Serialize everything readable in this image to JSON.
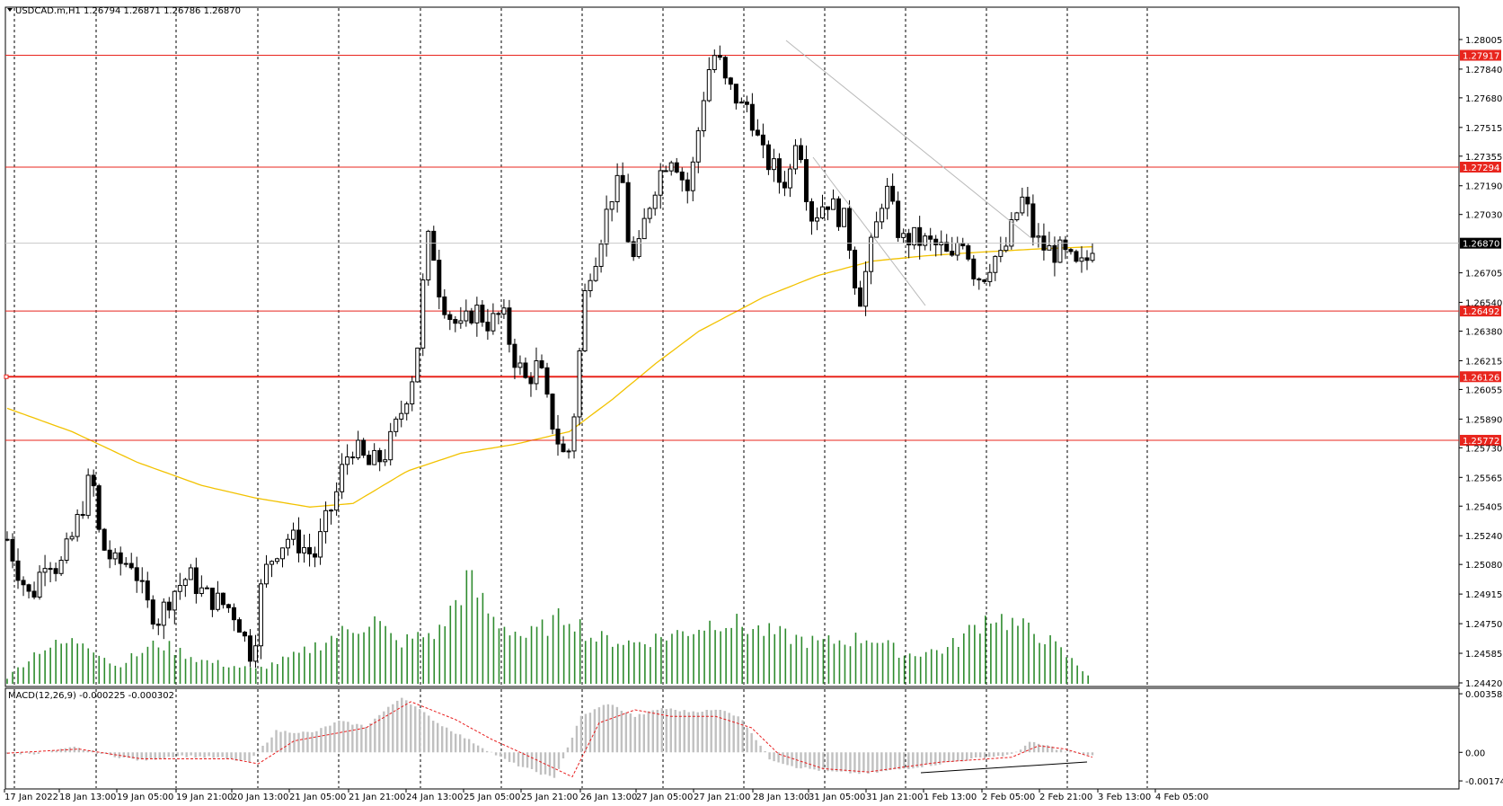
{
  "header": {
    "symbol": "USDCAD.m,H1",
    "ohlc": "1.26794 1.26871 1.26786 1.26870"
  },
  "macd": {
    "label": "MACD(12,26,9) -0.000225 -0.000302",
    "axis_ticks": [
      "0.003586",
      "0.00",
      "-0.001749"
    ]
  },
  "colors": {
    "background": "#ffffff",
    "candle": "#000000",
    "volume": "#2e8b2e",
    "hline": "#e8251d",
    "ma": "#f2c200",
    "macd_hist": "#c0c0c0",
    "macd_signal": "#e81e1e",
    "price_line": "#c8c8c8"
  },
  "chart_data": {
    "type": "candlestick",
    "symbol": "USDCAD.m",
    "timeframe": "H1",
    "current_price": 1.2687,
    "current_price_label": "1.26870",
    "ylim": [
      1.2442,
      1.2815
    ],
    "y_ticks": [
      "1.28005",
      "1.27840",
      "1.27680",
      "1.27515",
      "1.27355",
      "1.27190",
      "1.27030",
      "1.26705",
      "1.26540",
      "1.26380",
      "1.26215",
      "1.26055",
      "1.25890",
      "1.25730",
      "1.25565",
      "1.25405",
      "1.25240",
      "1.25080",
      "1.24915",
      "1.24750",
      "1.24585",
      "1.24420"
    ],
    "x_ticks": [
      "17 Jan 2022",
      "18 Jan 13:00",
      "19 Jan 05:00",
      "19 Jan 21:00",
      "20 Jan 13:00",
      "21 Jan 05:00",
      "21 Jan 21:00",
      "24 Jan 13:00",
      "25 Jan 05:00",
      "25 Jan 21:00",
      "26 Jan 13:00",
      "27 Jan 05:00",
      "27 Jan 21:00",
      "28 Jan 13:00",
      "31 Jan 05:00",
      "31 Jan 21:00",
      "1 Feb 13:00",
      "2 Feb 05:00",
      "2 Feb 21:00",
      "3 Feb 13:00",
      "4 Feb 05:00"
    ],
    "horizontal_levels": [
      {
        "value": 1.27917,
        "label": "1.27917"
      },
      {
        "value": 1.27294,
        "label": "1.27294"
      },
      {
        "value": 1.26492,
        "label": "1.26492"
      },
      {
        "value": 1.26126,
        "label": "1.26126"
      },
      {
        "value": 1.25772,
        "label": "1.25772"
      }
    ],
    "price_path": [
      [
        0,
        1.2522
      ],
      [
        10,
        1.2505
      ],
      [
        22,
        1.2488
      ],
      [
        36,
        1.2514
      ],
      [
        48,
        1.2505
      ],
      [
        60,
        1.2523
      ],
      [
        72,
        1.2545
      ],
      [
        78,
        1.256
      ],
      [
        86,
        1.252
      ],
      [
        100,
        1.2508
      ],
      [
        116,
        1.251
      ],
      [
        128,
        1.2486
      ],
      [
        140,
        1.2478
      ],
      [
        152,
        1.2492
      ],
      [
        168,
        1.2502
      ],
      [
        182,
        1.2491
      ],
      [
        196,
        1.2487
      ],
      [
        208,
        1.2483
      ],
      [
        216,
        1.2474
      ],
      [
        224,
        1.2458
      ],
      [
        230,
        1.247
      ],
      [
        236,
        1.25
      ],
      [
        248,
        1.2516
      ],
      [
        260,
        1.2523
      ],
      [
        272,
        1.2519
      ],
      [
        284,
        1.2512
      ],
      [
        294,
        1.253
      ],
      [
        304,
        1.2546
      ],
      [
        312,
        1.2566
      ],
      [
        320,
        1.2574
      ],
      [
        334,
        1.2563
      ],
      [
        348,
        1.2568
      ],
      [
        356,
        1.2578
      ],
      [
        364,
        1.2592
      ],
      [
        372,
        1.2608
      ],
      [
        378,
        1.262
      ],
      [
        382,
        1.2647
      ],
      [
        388,
        1.2684
      ],
      [
        392,
        1.2694
      ],
      [
        398,
        1.2665
      ],
      [
        408,
        1.2648
      ],
      [
        420,
        1.2638
      ],
      [
        432,
        1.2651
      ],
      [
        446,
        1.2642
      ],
      [
        458,
        1.2648
      ],
      [
        468,
        1.2625
      ],
      [
        480,
        1.261
      ],
      [
        492,
        1.262
      ],
      [
        500,
        1.2596
      ],
      [
        508,
        1.258
      ],
      [
        514,
        1.2569
      ],
      [
        520,
        1.2572
      ],
      [
        526,
        1.26
      ],
      [
        530,
        1.263
      ],
      [
        536,
        1.2668
      ],
      [
        544,
        1.268
      ],
      [
        552,
        1.2698
      ],
      [
        560,
        1.2716
      ],
      [
        570,
        1.272
      ],
      [
        576,
        1.268
      ],
      [
        582,
        1.2676
      ],
      [
        590,
        1.27
      ],
      [
        598,
        1.2718
      ],
      [
        608,
        1.2732
      ],
      [
        616,
        1.2738
      ],
      [
        624,
        1.2724
      ],
      [
        630,
        1.2716
      ],
      [
        636,
        1.2735
      ],
      [
        642,
        1.2762
      ],
      [
        648,
        1.2782
      ],
      [
        654,
        1.2792
      ],
      [
        660,
        1.2786
      ],
      [
        666,
        1.2772
      ],
      [
        672,
        1.2772
      ],
      [
        678,
        1.2762
      ],
      [
        686,
        1.2765
      ],
      [
        694,
        1.2745
      ],
      [
        700,
        1.2734
      ],
      [
        708,
        1.273
      ],
      [
        716,
        1.272
      ],
      [
        724,
        1.2726
      ],
      [
        730,
        1.275
      ],
      [
        736,
        1.2735
      ],
      [
        742,
        1.2702
      ],
      [
        750,
        1.2705
      ],
      [
        758,
        1.2712
      ],
      [
        766,
        1.2705
      ],
      [
        774,
        1.27
      ],
      [
        780,
        1.2685
      ],
      [
        786,
        1.266
      ],
      [
        790,
        1.2657
      ],
      [
        796,
        1.2676
      ],
      [
        804,
        1.2696
      ],
      [
        812,
        1.272
      ],
      [
        820,
        1.2702
      ],
      [
        828,
        1.2688
      ],
      [
        836,
        1.269
      ],
      [
        846,
        1.2688
      ],
      [
        856,
        1.2686
      ],
      [
        864,
        1.2684
      ],
      [
        874,
        1.2676
      ],
      [
        882,
        1.2694
      ],
      [
        888,
        1.2684
      ],
      [
        896,
        1.2668
      ],
      [
        904,
        1.267
      ],
      [
        912,
        1.268
      ],
      [
        920,
        1.2678
      ],
      [
        930,
        1.2696
      ],
      [
        938,
        1.2712
      ],
      [
        944,
        1.2705
      ],
      [
        950,
        1.269
      ],
      [
        958,
        1.2685
      ],
      [
        966,
        1.2682
      ],
      [
        974,
        1.2682
      ],
      [
        982,
        1.2678
      ],
      [
        990,
        1.2672
      ],
      [
        998,
        1.2676
      ],
      [
        1004,
        1.2687
      ]
    ],
    "moving_average": [
      [
        0,
        1.2595
      ],
      [
        60,
        1.2582
      ],
      [
        120,
        1.2565
      ],
      [
        180,
        1.2552
      ],
      [
        230,
        1.2545
      ],
      [
        280,
        1.254
      ],
      [
        320,
        1.2542
      ],
      [
        370,
        1.256
      ],
      [
        420,
        1.257
      ],
      [
        470,
        1.2575
      ],
      [
        520,
        1.2582
      ],
      [
        560,
        1.26
      ],
      [
        600,
        1.262
      ],
      [
        640,
        1.2638
      ],
      [
        700,
        1.2657
      ],
      [
        750,
        1.2669
      ],
      [
        800,
        1.2677
      ],
      [
        850,
        1.268
      ],
      [
        900,
        1.2682
      ],
      [
        960,
        1.2684
      ],
      [
        1004,
        1.2685
      ]
    ],
    "volume_peaks": [
      [
        0,
        0.05
      ],
      [
        30,
        0.3
      ],
      [
        72,
        0.38
      ],
      [
        100,
        0.15
      ],
      [
        140,
        0.35
      ],
      [
        180,
        0.2
      ],
      [
        230,
        0.12
      ],
      [
        270,
        0.25
      ],
      [
        300,
        0.4
      ],
      [
        340,
        0.55
      ],
      [
        360,
        0.35
      ],
      [
        400,
        0.45
      ],
      [
        426,
        0.9
      ],
      [
        450,
        0.55
      ],
      [
        480,
        0.4
      ],
      [
        520,
        0.6
      ],
      [
        540,
        0.4
      ],
      [
        580,
        0.35
      ],
      [
        628,
        0.45
      ],
      [
        660,
        0.55
      ],
      [
        700,
        0.45
      ],
      [
        750,
        0.35
      ],
      [
        800,
        0.4
      ],
      [
        830,
        0.25
      ],
      [
        870,
        0.3
      ],
      [
        910,
        0.6
      ],
      [
        960,
        0.4
      ],
      [
        1000,
        0.08
      ]
    ],
    "macd_hist": [
      [
        0,
        -8e-05
      ],
      [
        40,
        -5e-05
      ],
      [
        75,
        0.0003
      ],
      [
        110,
        -0.00015
      ],
      [
        150,
        -0.0005
      ],
      [
        190,
        -0.0002
      ],
      [
        240,
        -0.00035
      ],
      [
        270,
        -0.0006
      ],
      [
        300,
        0.0013
      ],
      [
        340,
        0.0012
      ],
      [
        370,
        0.0019
      ],
      [
        400,
        0.0016
      ],
      [
        440,
        0.0034
      ],
      [
        480,
        0.0018
      ],
      [
        520,
        0.0006
      ],
      [
        560,
        -0.0006
      ],
      [
        610,
        -0.0016
      ],
      [
        640,
        0.0022
      ],
      [
        670,
        0.003
      ],
      [
        700,
        0.0022
      ],
      [
        730,
        0.0027
      ],
      [
        760,
        0.0025
      ],
      [
        800,
        0.0026
      ],
      [
        820,
        0.002
      ],
      [
        850,
        -0.0004
      ],
      [
        880,
        -0.0009
      ],
      [
        920,
        -0.0012
      ],
      [
        960,
        -0.0013
      ],
      [
        1000,
        -0.001
      ],
      [
        1040,
        -0.0007
      ],
      [
        1090,
        -0.0003
      ],
      [
        1120,
        -0.00015
      ],
      [
        1140,
        0.0006
      ],
      [
        1160,
        0.0004
      ],
      [
        1180,
        5e-05
      ],
      [
        1210,
        -0.0002
      ]
    ],
    "macd_signal": [
      [
        0,
        -5e-05
      ],
      [
        80,
        0.0002
      ],
      [
        150,
        -0.0004
      ],
      [
        250,
        -0.0004
      ],
      [
        280,
        -0.0007
      ],
      [
        320,
        0.0007
      ],
      [
        360,
        0.0011
      ],
      [
        400,
        0.0015
      ],
      [
        450,
        0.0031
      ],
      [
        500,
        0.002
      ],
      [
        540,
        0.0008
      ],
      [
        580,
        -0.0002
      ],
      [
        630,
        -0.0015
      ],
      [
        660,
        0.0018
      ],
      [
        700,
        0.0026
      ],
      [
        740,
        0.0022
      ],
      [
        790,
        0.0022
      ],
      [
        830,
        0.0015
      ],
      [
        860,
        -0.0001
      ],
      [
        910,
        -0.001
      ],
      [
        960,
        -0.0012
      ],
      [
        1040,
        -0.0006
      ],
      [
        1120,
        -0.0003
      ],
      [
        1150,
        0.0004
      ],
      [
        1180,
        0.0002
      ],
      [
        1210,
        -0.0003
      ]
    ]
  }
}
